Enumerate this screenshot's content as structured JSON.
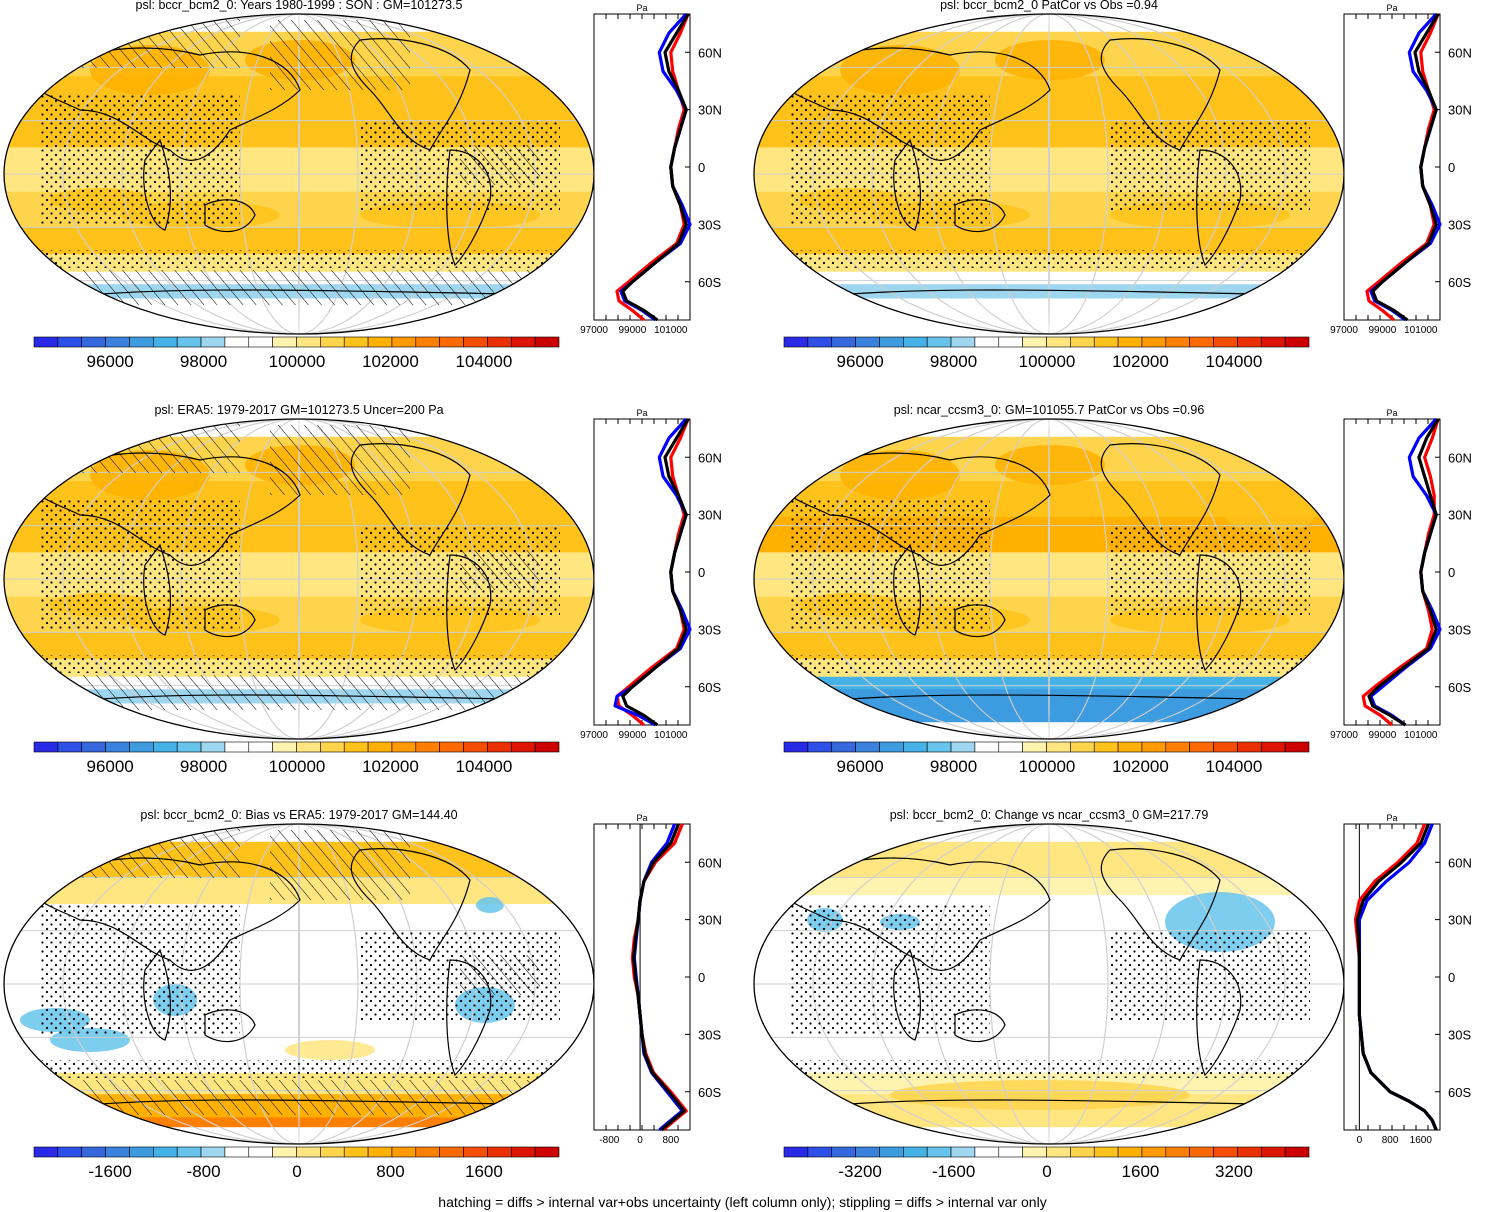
{
  "footer": "hatching = diffs > internal var+obs uncertainty (left column only); stippling = diffs > internal var only",
  "palettes": {
    "abs": [
      "#2a2ae6",
      "#2e4fe8",
      "#3468dc",
      "#3a82dd",
      "#3d9be0",
      "#44b2e6",
      "#66c4ec",
      "#9fd6ef",
      "#ffffff",
      "#ffffff",
      "#fff3b0",
      "#ffe680",
      "#ffd44d",
      "#ffc21a",
      "#ffb000",
      "#ff9a00",
      "#ff8000",
      "#ff6a00",
      "#f54e00",
      "#ea3000",
      "#dc1400",
      "#cc0000"
    ],
    "diff": [
      "#2a2ae6",
      "#2e4fe8",
      "#3468dc",
      "#3a82dd",
      "#3d9be0",
      "#44b2e6",
      "#66c4ec",
      "#9fd6ef",
      "#ffffff",
      "#ffffff",
      "#fff3b0",
      "#ffe680",
      "#ffd44d",
      "#ffc21a",
      "#ffb000",
      "#ff9a00",
      "#ff8000",
      "#ff6a00",
      "#f54e00",
      "#ea3000",
      "#dc1400",
      "#cc0000"
    ],
    "profile_colors": {
      "model": "#ff0000",
      "model2": "#0000ff",
      "obs": "#000000"
    }
  },
  "panels": [
    {
      "title": "psl: bccr_bcm2_0: Years 1980-1999 : SON : GM=101273.5",
      "kind": "abs",
      "hatch": true,
      "stipple": true,
      "colorbar_labels": [
        "96000",
        "98000",
        "100000",
        "102000",
        "104000"
      ],
      "profile": {
        "unit": "Pa",
        "x_ticks": [
          "97000",
          "99000",
          "101000"
        ],
        "y_ticks": [
          "60N",
          "30N",
          "0",
          "30S",
          "60S"
        ],
        "xlim": [
          97000,
          102000
        ],
        "lat": [
          80,
          70,
          60,
          50,
          40,
          30,
          20,
          10,
          0,
          -10,
          -20,
          -30,
          -40,
          -50,
          -60,
          -65,
          -70,
          -75,
          -80
        ],
        "series": [
          {
            "values": [
              101900,
              101500,
              101000,
              101100,
              101400,
              101700,
              101400,
              101200,
              101000,
              101100,
              101500,
              101700,
              101300,
              100000,
              98800,
              98200,
              98300,
              99000,
              99600
            ]
          },
          {
            "values": [
              101800,
              100900,
              100400,
              100600,
              101300,
              101800,
              101500,
              101200,
              101000,
              101100,
              101600,
              102000,
              101500,
              100200,
              99000,
              98400,
              98600,
              99500,
              100200
            ]
          },
          {
            "values": [
              101900,
              101300,
              100700,
              100900,
              101400,
              101800,
              101500,
              101200,
              101000,
              101100,
              101500,
              101800,
              101400,
              100200,
              99000,
              98500,
              98700,
              99600,
              100300
            ]
          }
        ]
      }
    },
    {
      "title": "psl: bccr_bcm2_0 PatCor vs Obs =0.94",
      "kind": "abs",
      "hatch": false,
      "stipple": true,
      "colorbar_labels": [
        "96000",
        "98000",
        "100000",
        "102000",
        "104000"
      ],
      "profile": {
        "unit": "Pa",
        "x_ticks": [
          "97000",
          "99000",
          "101000"
        ],
        "y_ticks": [
          "60N",
          "30N",
          "0",
          "30S",
          "60S"
        ],
        "xlim": [
          97000,
          102000
        ],
        "lat": [
          80,
          70,
          60,
          50,
          40,
          30,
          20,
          10,
          0,
          -10,
          -20,
          -30,
          -40,
          -50,
          -60,
          -65,
          -70,
          -75,
          -80
        ],
        "series": [
          {
            "values": [
              101900,
              101500,
              101000,
              101100,
              101400,
              101700,
              101400,
              101200,
              101000,
              101100,
              101500,
              101700,
              101300,
              100000,
              98800,
              98200,
              98300,
              99000,
              99600
            ]
          },
          {
            "values": [
              101800,
              100900,
              100400,
              100600,
              101300,
              101800,
              101500,
              101200,
              101000,
              101100,
              101600,
              102000,
              101500,
              100200,
              99000,
              98400,
              98600,
              99500,
              100200
            ]
          },
          {
            "values": [
              101900,
              101300,
              100700,
              100900,
              101400,
              101800,
              101500,
              101200,
              101000,
              101100,
              101500,
              101800,
              101400,
              100200,
              99000,
              98500,
              98700,
              99600,
              100300
            ]
          }
        ]
      }
    },
    {
      "title": "psl: ERA5: 1979-2017 GM=101273.5 Uncer=200 Pa",
      "kind": "abs",
      "hatch": true,
      "stipple": true,
      "colorbar_labels": [
        "96000",
        "98000",
        "100000",
        "102000",
        "104000"
      ],
      "profile": {
        "unit": "Pa",
        "x_ticks": [
          "97000",
          "99000",
          "101000"
        ],
        "y_ticks": [
          "60N",
          "30N",
          "0",
          "30S",
          "60S"
        ],
        "xlim": [
          97000,
          102000
        ],
        "lat": [
          80,
          70,
          60,
          50,
          40,
          30,
          20,
          10,
          0,
          -10,
          -20,
          -30,
          -40,
          -50,
          -60,
          -65,
          -70,
          -75,
          -80
        ],
        "series": [
          {
            "values": [
              101900,
              101500,
              101000,
              101100,
              101400,
              101700,
              101400,
              101200,
              101000,
              101100,
              101500,
              101700,
              101300,
              100000,
              98800,
              98200,
              98300,
              99000,
              99600
            ]
          },
          {
            "values": [
              101800,
              100900,
              100400,
              100600,
              101300,
              101800,
              101500,
              101200,
              101000,
              101100,
              101600,
              102000,
              101500,
              100200,
              99000,
              98200,
              98100,
              99300,
              100200
            ]
          },
          {
            "values": [
              101900,
              101300,
              100700,
              100900,
              101400,
              101800,
              101500,
              101200,
              101000,
              101100,
              101500,
              101800,
              101400,
              100200,
              99000,
              98500,
              98700,
              99600,
              100300
            ]
          }
        ]
      }
    },
    {
      "title": "psl: ncar_ccsm3_0: GM=101055.7 PatCor vs Obs =0.96",
      "kind": "abs",
      "hatch": false,
      "stipple": true,
      "colorbar_labels": [
        "96000",
        "98000",
        "100000",
        "102000",
        "104000"
      ],
      "profile": {
        "unit": "Pa",
        "x_ticks": [
          "97000",
          "99000",
          "101000"
        ],
        "y_ticks": [
          "60N",
          "30N",
          "0",
          "30S",
          "60S"
        ],
        "xlim": [
          97000,
          102000
        ],
        "lat": [
          80,
          70,
          60,
          50,
          40,
          30,
          20,
          10,
          0,
          -10,
          -20,
          -30,
          -40,
          -50,
          -60,
          -65,
          -70,
          -75,
          -80
        ],
        "series": [
          {
            "values": [
              101900,
              101600,
              101200,
              101500,
              101700,
              101700,
              101400,
              101200,
              101000,
              101100,
              101400,
              101600,
              101300,
              99900,
              98600,
              98000,
              98100,
              98900,
              99500
            ]
          },
          {
            "values": [
              101800,
              100900,
              100400,
              100600,
              101300,
              101800,
              101500,
              101200,
              101000,
              101100,
              101600,
              102000,
              101500,
              100200,
              99000,
              98400,
              98600,
              99500,
              100200
            ]
          },
          {
            "values": [
              101900,
              101300,
              100900,
              101200,
              101500,
              101800,
              101500,
              101200,
              101000,
              101100,
              101500,
              101800,
              101400,
              100100,
              98800,
              98300,
              98500,
              99400,
              100200
            ]
          }
        ]
      }
    },
    {
      "title": "psl: bccr_bcm2_0: Bias vs ERA5: 1979-2017  GM=144.40",
      "kind": "diff",
      "hatch": true,
      "stipple": true,
      "colorbar_labels": [
        "-1600",
        "-800",
        "0",
        "800",
        "1600"
      ],
      "profile": {
        "unit": "Pa",
        "x_ticks": [
          "-800",
          "0",
          "800"
        ],
        "y_ticks": [
          "60N",
          "30N",
          "0",
          "30S",
          "60S"
        ],
        "xlim": [
          -1200,
          1300
        ],
        "zero_line": 0,
        "lat": [
          80,
          70,
          60,
          50,
          40,
          30,
          20,
          10,
          0,
          -10,
          -20,
          -30,
          -40,
          -50,
          -60,
          -65,
          -70,
          -75,
          -80
        ],
        "series": [
          {
            "values": [
              1100,
              900,
              400,
              100,
              0,
              -50,
              -150,
              -200,
              -150,
              -50,
              0,
              50,
              150,
              350,
              800,
              1000,
              1200,
              900,
              600
            ]
          },
          {
            "values": [
              900,
              700,
              300,
              100,
              0,
              -50,
              -100,
              -150,
              -100,
              -50,
              0,
              50,
              100,
              300,
              700,
              900,
              1100,
              800,
              500
            ]
          },
          {
            "values": [
              1000,
              800,
              350,
              100,
              0,
              -50,
              -120,
              -170,
              -120,
              -50,
              0,
              50,
              120,
              320,
              750,
              950,
              1150,
              850,
              550
            ]
          }
        ]
      }
    },
    {
      "title": "psl: bccr_bcm2_0: Change vs ncar_ccsm3_0 GM=217.79",
      "kind": "diff",
      "hatch": false,
      "stipple": true,
      "colorbar_labels": [
        "-3200",
        "-1600",
        "0",
        "1600",
        "3200"
      ],
      "profile": {
        "unit": "Pa",
        "x_ticks": [
          "0",
          "800",
          "1600"
        ],
        "y_ticks": [
          "60N",
          "30N",
          "0",
          "30S",
          "60S"
        ],
        "xlim": [
          -400,
          2100
        ],
        "zero_line": 0,
        "lat": [
          80,
          70,
          60,
          50,
          40,
          30,
          20,
          10,
          0,
          -10,
          -20,
          -30,
          -40,
          -50,
          -60,
          -65,
          -70,
          -75,
          -80
        ],
        "series": [
          {
            "values": [
              1700,
              1500,
              1000,
              400,
              0,
              -100,
              -50,
              0,
              0,
              0,
              0,
              50,
              100,
              300,
              800,
              1300,
              1700,
              1900,
              2000
            ]
          },
          {
            "values": [
              1900,
              1700,
              1300,
              700,
              200,
              0,
              0,
              0,
              0,
              0,
              0,
              50,
              100,
              300,
              800,
              1300,
              1700,
              1900,
              2000
            ]
          },
          {
            "values": [
              1800,
              1600,
              1100,
              500,
              100,
              -50,
              -20,
              0,
              0,
              0,
              0,
              50,
              100,
              300,
              800,
              1300,
              1700,
              1900,
              2000
            ]
          }
        ]
      }
    }
  ]
}
